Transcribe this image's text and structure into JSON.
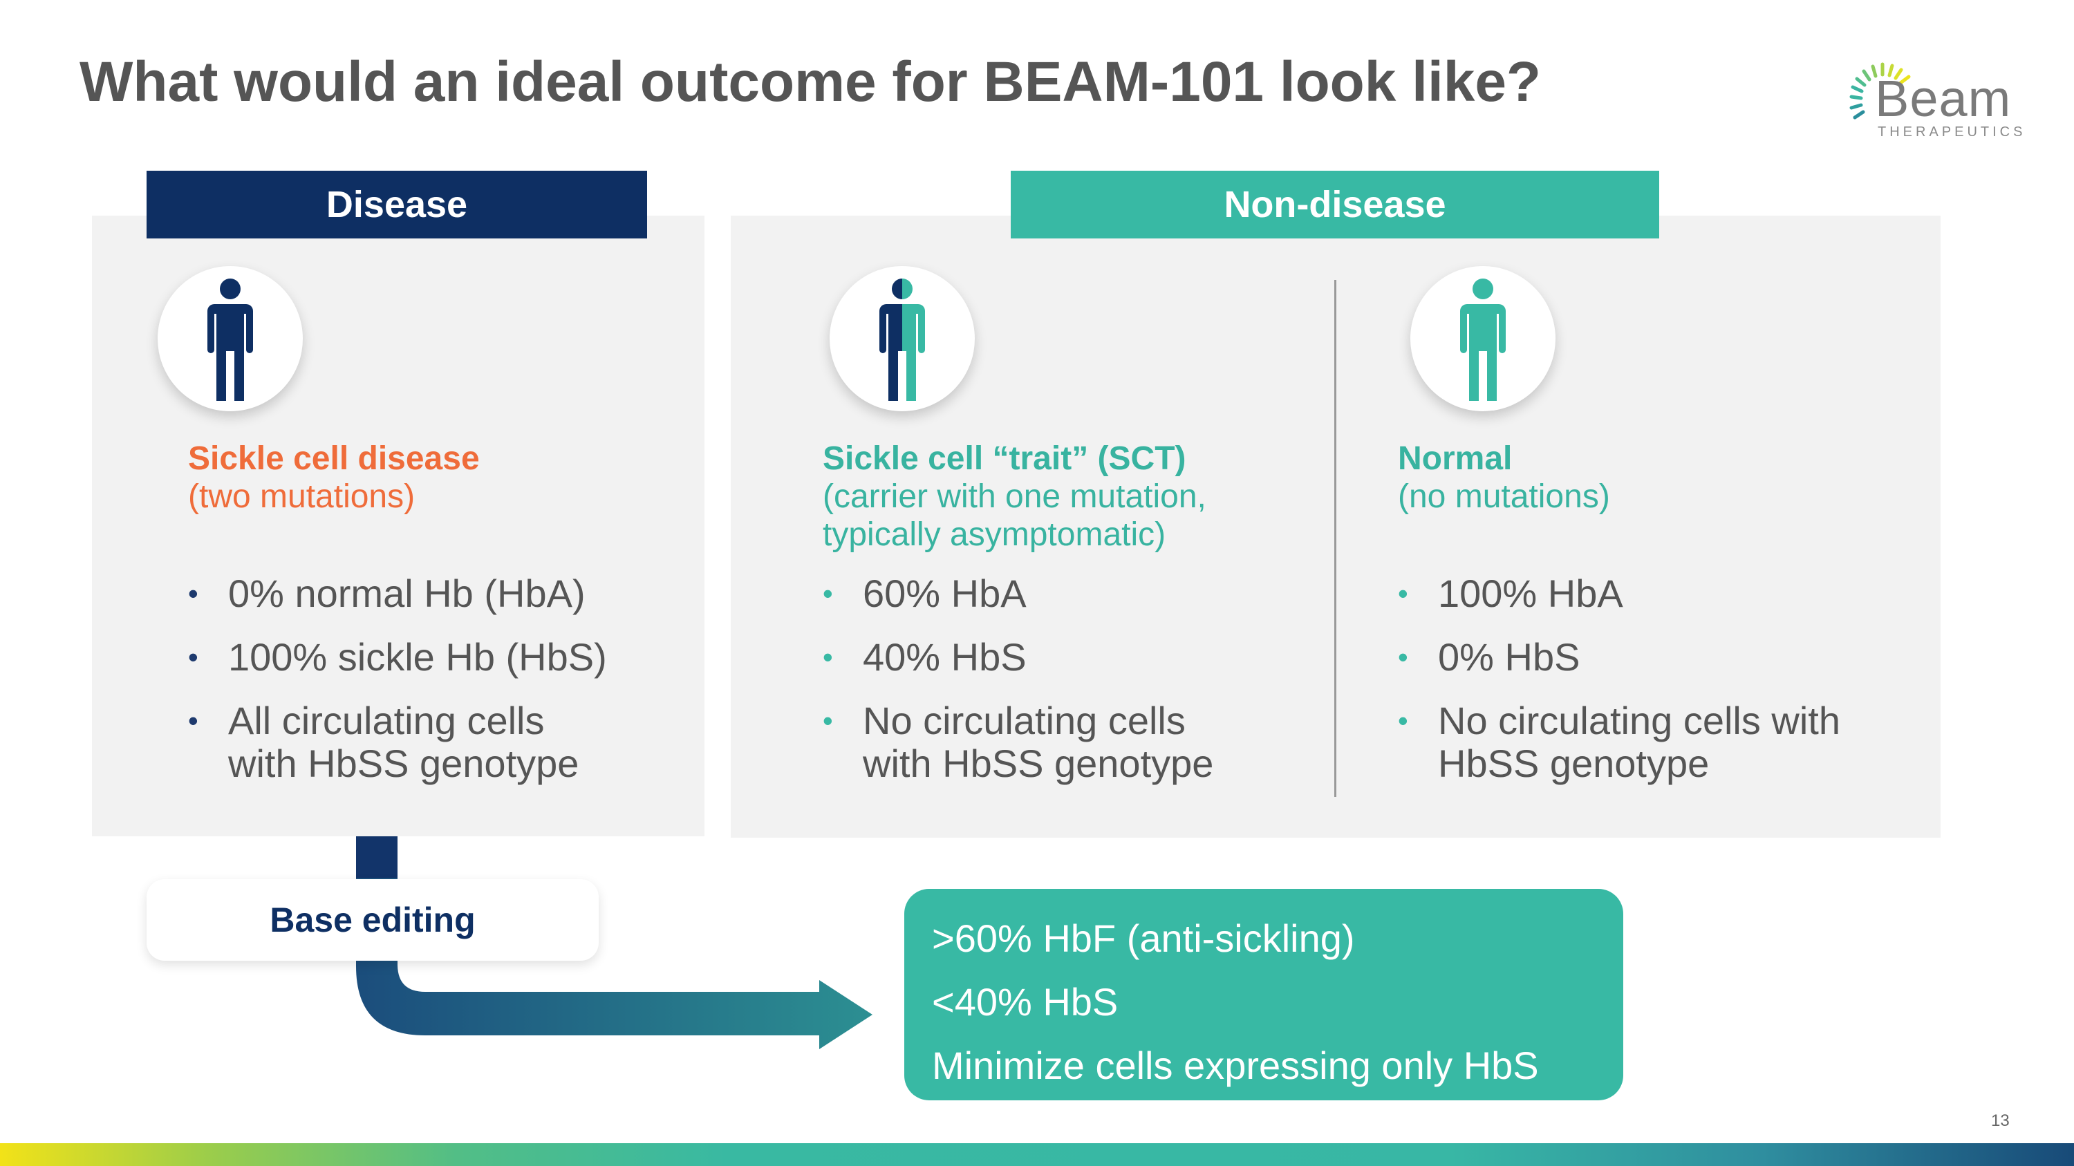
{
  "title": "What would an ideal outcome for BEAM-101 look like?",
  "logo": {
    "word": "Beam",
    "subtitle": "THERAPEUTICS"
  },
  "headers": {
    "disease": "Disease",
    "non_disease": "Non-disease"
  },
  "columns": [
    {
      "heading": "Sickle cell disease",
      "subheading": "(two mutations)",
      "bullets": [
        "0% normal Hb (HbA)",
        "100% sickle Hb (HbS)",
        "All circulating cells",
        "with HbSS genotype"
      ]
    },
    {
      "heading": "Sickle cell “trait” (SCT)",
      "subheading_line1": "(carrier with one mutation,",
      "subheading_line2": "typically asymptomatic)",
      "bullets": [
        "60% HbA",
        "40% HbS",
        "No circulating cells",
        "with HbSS genotype"
      ]
    },
    {
      "heading": "Normal",
      "subheading": "(no mutations)",
      "bullets": [
        "100% HbA",
        "0% HbS",
        "No circulating cells with",
        "HbSS genotype"
      ]
    }
  ],
  "base_editing_label": "Base editing",
  "outcome": [
    ">60% HbF (anti-sickling)",
    "<40% HbS",
    "Minimize cells expressing only HbS"
  ],
  "page_number": "13",
  "colors": {
    "navy": "#0e2f63",
    "teal": "#38b9a4",
    "orange": "#ef6c3a",
    "gray_text": "#555555",
    "panel_bg": "#f2f2f2"
  },
  "icons": {
    "disease_person": "person-icon-navy",
    "trait_person": "person-icon-half",
    "normal_person": "person-icon-teal",
    "arrow": "curved-arrow-icon"
  }
}
